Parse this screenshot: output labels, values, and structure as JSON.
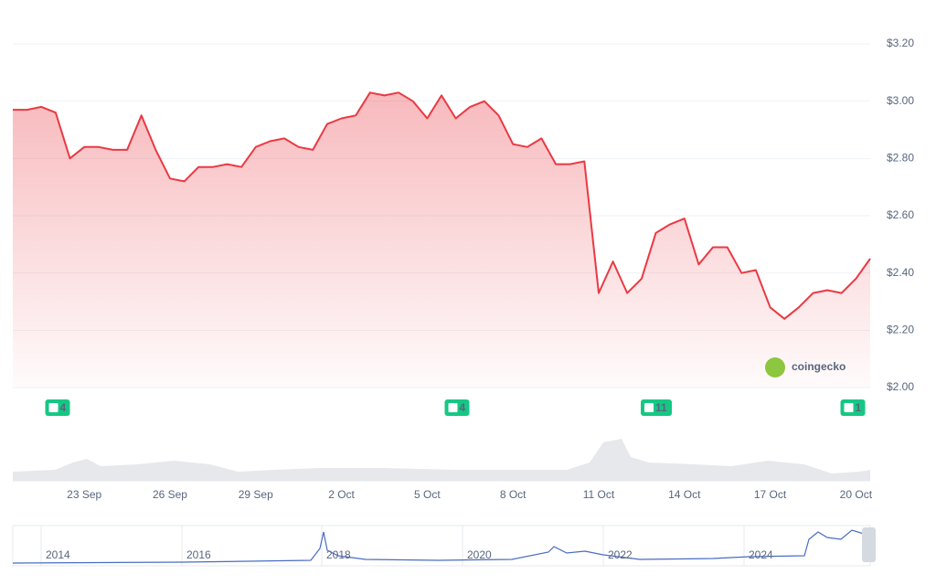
{
  "chart_data": {
    "type": "line",
    "categories": [
      null,
      null,
      null,
      null,
      null,
      "23 Sep",
      null,
      null,
      null,
      null,
      null,
      "26 Sep",
      null,
      null,
      null,
      null,
      null,
      "29 Sep",
      null,
      null,
      null,
      null,
      null,
      "2 Oct",
      null,
      null,
      null,
      null,
      null,
      "5 Oct",
      null,
      null,
      null,
      null,
      null,
      "8 Oct",
      null,
      null,
      null,
      null,
      null,
      "11 Oct",
      null,
      null,
      null,
      null,
      null,
      "14 Oct",
      null,
      null,
      null,
      null,
      null,
      "17 Oct",
      null,
      null,
      null,
      null,
      null,
      "20 Oct",
      null
    ],
    "values": [
      2.97,
      2.97,
      2.98,
      2.96,
      2.8,
      2.84,
      2.84,
      2.83,
      2.83,
      2.95,
      2.83,
      2.73,
      2.72,
      2.77,
      2.77,
      2.78,
      2.77,
      2.84,
      2.86,
      2.87,
      2.84,
      2.83,
      2.92,
      2.94,
      2.95,
      3.03,
      3.02,
      3.03,
      3.0,
      2.94,
      3.02,
      2.94,
      2.98,
      3.0,
      2.95,
      2.85,
      2.84,
      2.87,
      2.78,
      2.78,
      2.79,
      2.33,
      2.44,
      2.33,
      2.38,
      2.54,
      2.57,
      2.59,
      2.43,
      2.49,
      2.49,
      2.4,
      2.41,
      2.28,
      2.24,
      2.28,
      2.33,
      2.34,
      2.33,
      2.38,
      2.45
    ],
    "color": "#ea3943",
    "ylim": [
      2.0,
      3.2
    ],
    "yticks": [
      {
        "value": 2.0,
        "label": "$2.00"
      },
      {
        "value": 2.2,
        "label": "$2.20"
      },
      {
        "value": 2.4,
        "label": "$2.40"
      },
      {
        "value": 2.6,
        "label": "$2.60"
      },
      {
        "value": 2.8,
        "label": "$2.80"
      },
      {
        "value": 3.0,
        "label": "$3.00"
      },
      {
        "value": 3.2,
        "label": "$3.20"
      }
    ],
    "grid": true,
    "events": [
      "4",
      "4",
      "11",
      "1"
    ],
    "watermark": "coingecko",
    "navigator_labels": [
      "2014",
      "2016",
      "2018",
      "2020",
      "2022",
      "2024"
    ]
  }
}
